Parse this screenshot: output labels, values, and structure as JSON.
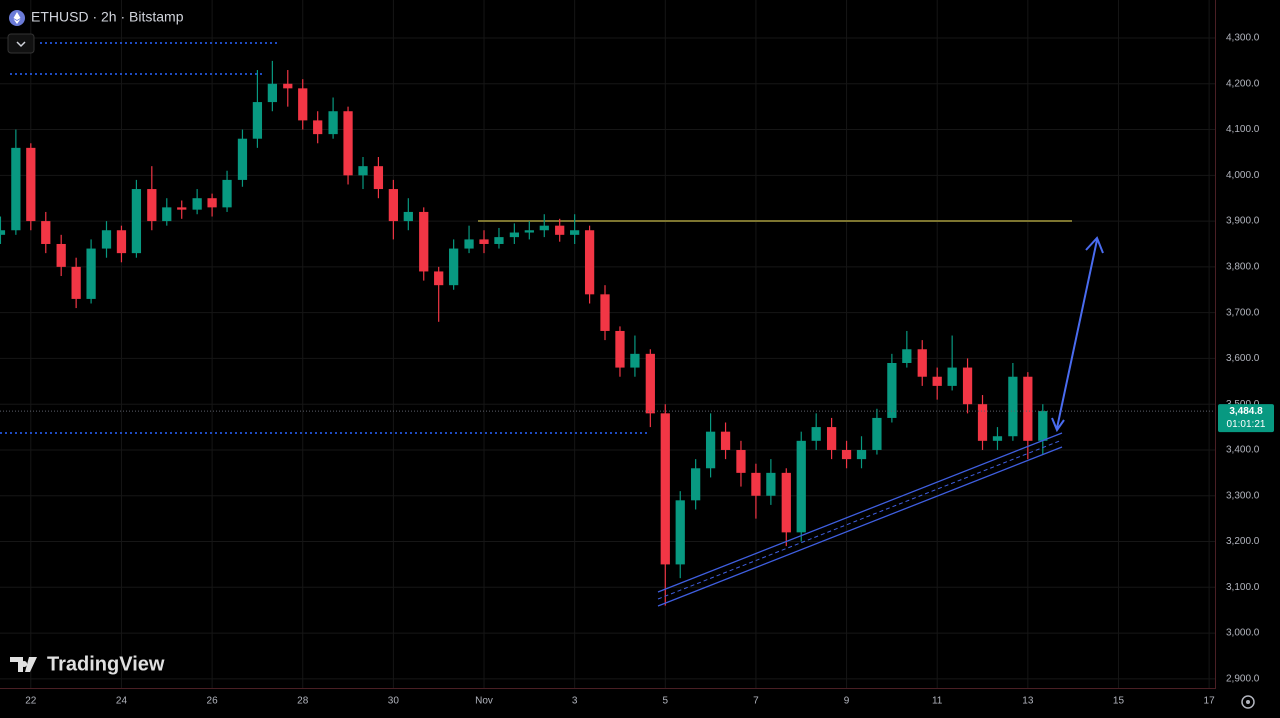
{
  "chart_data": {
    "type": "candlestick",
    "title": "ETHUSD · 2h · Bitstamp",
    "watermark": "TradingView",
    "countdown": "01:01:21",
    "last_price": {
      "value": 3484.8,
      "label": "3,484.8"
    },
    "up_color": "#089981",
    "down_color": "#f23645",
    "grid": true,
    "xlim": [
      21.32,
      48.13
    ],
    "ylim": [
      2880,
      4383
    ],
    "xticks": [
      22,
      24,
      26,
      28,
      30,
      {
        "value": 32,
        "label": "Nov"
      },
      {
        "value": 34,
        "label": "3"
      },
      {
        "value": 36,
        "label": "5"
      },
      {
        "value": 38,
        "label": "7"
      },
      {
        "value": 40,
        "label": "9"
      },
      {
        "value": 42,
        "label": "11"
      },
      {
        "value": 44,
        "label": "13"
      },
      {
        "value": 46,
        "label": "15"
      },
      {
        "value": 48,
        "label": "17"
      }
    ],
    "yticks": [
      {
        "value": 2900,
        "label": "2,900.0"
      },
      {
        "value": 3000,
        "label": "3,000.0"
      },
      {
        "value": 3100,
        "label": "3,100.0"
      },
      {
        "value": 3200,
        "label": "3,200.0"
      },
      {
        "value": 3300,
        "label": "3,300.0"
      },
      {
        "value": 3400,
        "label": "3,400.0"
      },
      {
        "value": 3500,
        "label": "3,500.0"
      },
      {
        "value": 3600,
        "label": "3,600.0"
      },
      {
        "value": 3700,
        "label": "3,700.0"
      },
      {
        "value": 3800,
        "label": "3,800.0"
      },
      {
        "value": 3900,
        "label": "3,900.0"
      },
      {
        "value": 4000,
        "label": "4,000.0"
      },
      {
        "value": 4100,
        "label": "4,100.0"
      },
      {
        "value": 4200,
        "label": "4,200.0"
      },
      {
        "value": 4300,
        "label": "4,300.0"
      }
    ],
    "x": [
      21.33,
      21.67,
      22,
      22.33,
      22.67,
      23,
      23.33,
      23.67,
      24,
      24.33,
      24.67,
      25,
      25.33,
      25.67,
      26,
      26.33,
      26.67,
      27,
      27.33,
      27.67,
      28,
      28.33,
      28.67,
      29,
      29.33,
      29.67,
      30,
      30.33,
      30.67,
      31,
      31.33,
      31.67,
      32,
      32.33,
      32.67,
      33,
      33.33,
      33.67,
      34,
      34.33,
      34.67,
      35,
      35.33,
      35.67,
      36,
      36.33,
      36.67,
      37,
      37.33,
      37.67,
      38,
      38.33,
      38.67,
      39,
      39.33,
      39.67,
      40,
      40.33,
      40.67,
      41,
      41.33,
      41.67,
      42,
      42.33,
      42.67,
      43,
      43.33,
      43.67,
      44,
      44.33
    ],
    "open": [
      3870,
      3880,
      4060,
      3900,
      3850,
      3800,
      3730,
      3840,
      3880,
      3830,
      3970,
      3900,
      3930,
      3925,
      3950,
      3930,
      3990,
      4080,
      4160,
      4200,
      4190,
      4120,
      4090,
      4140,
      4000,
      4020,
      3970,
      3900,
      3920,
      3790,
      3760,
      3840,
      3860,
      3850,
      3865,
      3875,
      3880,
      3890,
      3870,
      3880,
      3740,
      3660,
      3580,
      3610,
      3480,
      3150,
      3290,
      3360,
      3440,
      3400,
      3350,
      3300,
      3350,
      3220,
      3420,
      3450,
      3400,
      3380,
      3400,
      3470,
      3590,
      3620,
      3560,
      3540,
      3580,
      3500,
      3420,
      3430,
      3560,
      3420
    ],
    "high": [
      3910,
      4100,
      4070,
      3920,
      3870,
      3820,
      3860,
      3900,
      3890,
      3990,
      4020,
      3950,
      3945,
      3970,
      3960,
      4010,
      4100,
      4230,
      4250,
      4230,
      4210,
      4140,
      4170,
      4150,
      4040,
      4040,
      3990,
      3950,
      3930,
      3800,
      3860,
      3890,
      3880,
      3885,
      3895,
      3900,
      3915,
      3905,
      3915,
      3890,
      3760,
      3670,
      3650,
      3620,
      3500,
      3310,
      3380,
      3480,
      3460,
      3420,
      3370,
      3380,
      3360,
      3440,
      3480,
      3470,
      3420,
      3430,
      3490,
      3610,
      3660,
      3640,
      3580,
      3650,
      3600,
      3520,
      3450,
      3590,
      3570,
      3500
    ],
    "low": [
      3850,
      3870,
      3880,
      3830,
      3780,
      3710,
      3720,
      3820,
      3810,
      3820,
      3880,
      3890,
      3905,
      3915,
      3910,
      3920,
      3975,
      4060,
      4140,
      4150,
      4100,
      4070,
      4080,
      3980,
      3970,
      3950,
      3860,
      3880,
      3770,
      3680,
      3750,
      3830,
      3830,
      3840,
      3850,
      3860,
      3865,
      3855,
      3850,
      3720,
      3640,
      3560,
      3560,
      3450,
      3060,
      3120,
      3270,
      3340,
      3380,
      3320,
      3250,
      3280,
      3190,
      3200,
      3400,
      3380,
      3360,
      3360,
      3390,
      3460,
      3580,
      3540,
      3510,
      3530,
      3480,
      3400,
      3400,
      3420,
      3380,
      3390
    ],
    "close": [
      3880,
      4060,
      3900,
      3850,
      3800,
      3730,
      3840,
      3880,
      3830,
      3970,
      3900,
      3930,
      3925,
      3950,
      3930,
      3990,
      4080,
      4160,
      4200,
      4190,
      4120,
      4090,
      4140,
      4000,
      4020,
      3970,
      3900,
      3920,
      3790,
      3760,
      3840,
      3860,
      3850,
      3865,
      3875,
      3880,
      3890,
      3870,
      3880,
      3740,
      3660,
      3580,
      3610,
      3480,
      3150,
      3290,
      3360,
      3440,
      3400,
      3350,
      3300,
      3350,
      3220,
      3420,
      3450,
      3400,
      3380,
      3400,
      3470,
      3590,
      3620,
      3560,
      3540,
      3580,
      3500,
      3420,
      3430,
      3560,
      3420,
      3485
    ]
  }
}
